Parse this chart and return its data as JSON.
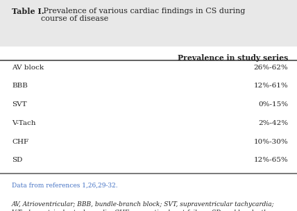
{
  "title_bold": "Table I.",
  "title_normal": " Prevalence of various cardiac findings in CS during\ncourse of disease",
  "header": "Prevalence in study series",
  "rows": [
    [
      "AV block",
      "26%-62%"
    ],
    [
      "BBB",
      "12%-61%"
    ],
    [
      "SVT",
      "0%-15%"
    ],
    [
      "V-Tach",
      "2%-42%"
    ],
    [
      "CHF",
      "10%-30%"
    ],
    [
      "SD",
      "12%-65%"
    ]
  ],
  "footnote_ref": "Data from references 1,26,29-32.",
  "footnote_ref_color": "#4472C4",
  "footnote_body": "AV, Atrioventricular; BBB, bundle-branch block; SVT, supraventricular tachycardia;\nV-Tach, ventricular tachycardia; CHF, congestive heart failure; SD, sudden death.\nSee text for details.",
  "header_bg": "#E8E8E8",
  "body_bg": "#FFFFFF",
  "thick_line_color": "#555555",
  "text_color": "#222222",
  "font_size_title": 8.0,
  "font_size_header": 7.8,
  "font_size_body": 7.5,
  "font_size_footnote": 6.5
}
